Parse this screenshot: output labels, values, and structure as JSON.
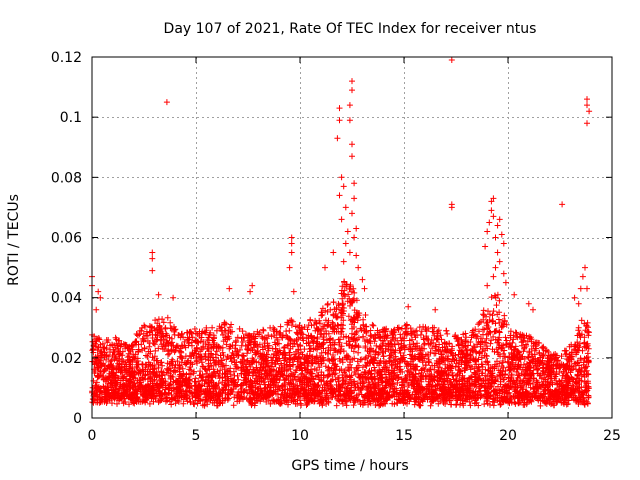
{
  "chart_data": {
    "type": "scatter",
    "title": "Day 107 of 2021, Rate Of TEC Index for receiver ntus",
    "xlabel": "GPS time / hours",
    "ylabel": "ROTI / TECUs",
    "xlim": [
      0,
      25
    ],
    "ylim": [
      0,
      0.12
    ],
    "x_ticks": [
      0,
      5,
      10,
      15,
      20,
      25
    ],
    "x_tick_labels": [
      "0",
      "5",
      "10",
      "15",
      "20",
      "25"
    ],
    "y_ticks": [
      0,
      0.02,
      0.04,
      0.06,
      0.08,
      0.1,
      0.12
    ],
    "y_tick_labels": [
      "0",
      "0.02",
      "0.04",
      "0.06",
      "0.08",
      "0.1",
      "0.12"
    ],
    "grid": true,
    "marker": "+",
    "color": "#ff0000",
    "envelope": [
      {
        "x": 0.0,
        "p95": 0.028
      },
      {
        "x": 0.5,
        "p95": 0.026
      },
      {
        "x": 1.0,
        "p95": 0.027
      },
      {
        "x": 1.5,
        "p95": 0.026
      },
      {
        "x": 2.0,
        "p95": 0.027
      },
      {
        "x": 2.5,
        "p95": 0.031
      },
      {
        "x": 3.0,
        "p95": 0.033
      },
      {
        "x": 3.5,
        "p95": 0.035
      },
      {
        "x": 4.0,
        "p95": 0.03
      },
      {
        "x": 4.5,
        "p95": 0.029
      },
      {
        "x": 5.0,
        "p95": 0.03
      },
      {
        "x": 5.5,
        "p95": 0.03
      },
      {
        "x": 6.0,
        "p95": 0.031
      },
      {
        "x": 6.5,
        "p95": 0.032
      },
      {
        "x": 7.0,
        "p95": 0.03
      },
      {
        "x": 7.5,
        "p95": 0.028
      },
      {
        "x": 8.0,
        "p95": 0.029
      },
      {
        "x": 8.5,
        "p95": 0.03
      },
      {
        "x": 9.0,
        "p95": 0.03
      },
      {
        "x": 9.5,
        "p95": 0.033
      },
      {
        "x": 10.0,
        "p95": 0.031
      },
      {
        "x": 10.5,
        "p95": 0.033
      },
      {
        "x": 11.0,
        "p95": 0.036
      },
      {
        "x": 11.5,
        "p95": 0.039
      },
      {
        "x": 12.0,
        "p95": 0.046
      },
      {
        "x": 12.5,
        "p95": 0.044
      },
      {
        "x": 13.0,
        "p95": 0.036
      },
      {
        "x": 13.5,
        "p95": 0.031
      },
      {
        "x": 14.0,
        "p95": 0.03
      },
      {
        "x": 14.5,
        "p95": 0.03
      },
      {
        "x": 15.0,
        "p95": 0.032
      },
      {
        "x": 15.5,
        "p95": 0.03
      },
      {
        "x": 16.0,
        "p95": 0.031
      },
      {
        "x": 16.5,
        "p95": 0.03
      },
      {
        "x": 17.0,
        "p95": 0.029
      },
      {
        "x": 17.5,
        "p95": 0.029
      },
      {
        "x": 18.0,
        "p95": 0.028
      },
      {
        "x": 18.5,
        "p95": 0.03
      },
      {
        "x": 19.0,
        "p95": 0.04
      },
      {
        "x": 19.5,
        "p95": 0.042
      },
      {
        "x": 20.0,
        "p95": 0.03
      },
      {
        "x": 20.5,
        "p95": 0.028
      },
      {
        "x": 21.0,
        "p95": 0.028
      },
      {
        "x": 21.5,
        "p95": 0.025
      },
      {
        "x": 22.0,
        "p95": 0.022
      },
      {
        "x": 22.5,
        "p95": 0.021
      },
      {
        "x": 23.0,
        "p95": 0.024
      },
      {
        "x": 23.5,
        "p95": 0.033
      },
      {
        "x": 23.9,
        "p95": 0.035
      }
    ],
    "outliers": [
      {
        "x": 0.0,
        "y": 0.047
      },
      {
        "x": 0.0,
        "y": 0.044
      },
      {
        "x": 0.3,
        "y": 0.042
      },
      {
        "x": 0.4,
        "y": 0.04
      },
      {
        "x": 0.2,
        "y": 0.036
      },
      {
        "x": 2.9,
        "y": 0.055
      },
      {
        "x": 2.9,
        "y": 0.053
      },
      {
        "x": 2.9,
        "y": 0.049
      },
      {
        "x": 3.2,
        "y": 0.041
      },
      {
        "x": 3.6,
        "y": 0.105
      },
      {
        "x": 3.9,
        "y": 0.04
      },
      {
        "x": 6.6,
        "y": 0.043
      },
      {
        "x": 7.6,
        "y": 0.042
      },
      {
        "x": 7.7,
        "y": 0.044
      },
      {
        "x": 9.6,
        "y": 0.06
      },
      {
        "x": 9.6,
        "y": 0.058
      },
      {
        "x": 9.6,
        "y": 0.055
      },
      {
        "x": 9.5,
        "y": 0.05
      },
      {
        "x": 9.7,
        "y": 0.042
      },
      {
        "x": 11.2,
        "y": 0.05
      },
      {
        "x": 11.6,
        "y": 0.055
      },
      {
        "x": 11.9,
        "y": 0.103
      },
      {
        "x": 11.9,
        "y": 0.099
      },
      {
        "x": 11.8,
        "y": 0.093
      },
      {
        "x": 12.0,
        "y": 0.08
      },
      {
        "x": 12.1,
        "y": 0.077
      },
      {
        "x": 11.9,
        "y": 0.074
      },
      {
        "x": 12.2,
        "y": 0.07
      },
      {
        "x": 12.0,
        "y": 0.066
      },
      {
        "x": 12.3,
        "y": 0.062
      },
      {
        "x": 12.2,
        "y": 0.058
      },
      {
        "x": 12.4,
        "y": 0.055
      },
      {
        "x": 12.1,
        "y": 0.052
      },
      {
        "x": 12.5,
        "y": 0.112
      },
      {
        "x": 12.5,
        "y": 0.109
      },
      {
        "x": 12.4,
        "y": 0.104
      },
      {
        "x": 12.4,
        "y": 0.099
      },
      {
        "x": 12.5,
        "y": 0.091
      },
      {
        "x": 12.5,
        "y": 0.087
      },
      {
        "x": 12.6,
        "y": 0.078
      },
      {
        "x": 12.6,
        "y": 0.073
      },
      {
        "x": 12.5,
        "y": 0.068
      },
      {
        "x": 12.7,
        "y": 0.063
      },
      {
        "x": 12.6,
        "y": 0.06
      },
      {
        "x": 12.7,
        "y": 0.054
      },
      {
        "x": 12.8,
        "y": 0.05
      },
      {
        "x": 13.0,
        "y": 0.046
      },
      {
        "x": 13.1,
        "y": 0.043
      },
      {
        "x": 15.2,
        "y": 0.037
      },
      {
        "x": 16.5,
        "y": 0.036
      },
      {
        "x": 17.3,
        "y": 0.119
      },
      {
        "x": 17.3,
        "y": 0.07
      },
      {
        "x": 17.3,
        "y": 0.071
      },
      {
        "x": 18.9,
        "y": 0.057
      },
      {
        "x": 19.0,
        "y": 0.062
      },
      {
        "x": 19.1,
        "y": 0.065
      },
      {
        "x": 19.2,
        "y": 0.069
      },
      {
        "x": 19.2,
        "y": 0.072
      },
      {
        "x": 19.3,
        "y": 0.073
      },
      {
        "x": 19.3,
        "y": 0.067
      },
      {
        "x": 19.4,
        "y": 0.06
      },
      {
        "x": 19.5,
        "y": 0.064
      },
      {
        "x": 19.6,
        "y": 0.066
      },
      {
        "x": 19.7,
        "y": 0.061
      },
      {
        "x": 19.8,
        "y": 0.058
      },
      {
        "x": 19.5,
        "y": 0.055
      },
      {
        "x": 19.4,
        "y": 0.05
      },
      {
        "x": 19.6,
        "y": 0.052
      },
      {
        "x": 19.3,
        "y": 0.047
      },
      {
        "x": 19.8,
        "y": 0.048
      },
      {
        "x": 19.9,
        "y": 0.045
      },
      {
        "x": 19.0,
        "y": 0.044
      },
      {
        "x": 20.3,
        "y": 0.041
      },
      {
        "x": 21.0,
        "y": 0.038
      },
      {
        "x": 21.2,
        "y": 0.036
      },
      {
        "x": 22.6,
        "y": 0.071
      },
      {
        "x": 23.2,
        "y": 0.04
      },
      {
        "x": 23.5,
        "y": 0.043
      },
      {
        "x": 23.6,
        "y": 0.047
      },
      {
        "x": 23.7,
        "y": 0.05
      },
      {
        "x": 23.8,
        "y": 0.043
      },
      {
        "x": 23.4,
        "y": 0.038
      },
      {
        "x": 23.8,
        "y": 0.106
      },
      {
        "x": 23.8,
        "y": 0.104
      },
      {
        "x": 23.9,
        "y": 0.102
      },
      {
        "x": 23.8,
        "y": 0.098
      }
    ]
  }
}
